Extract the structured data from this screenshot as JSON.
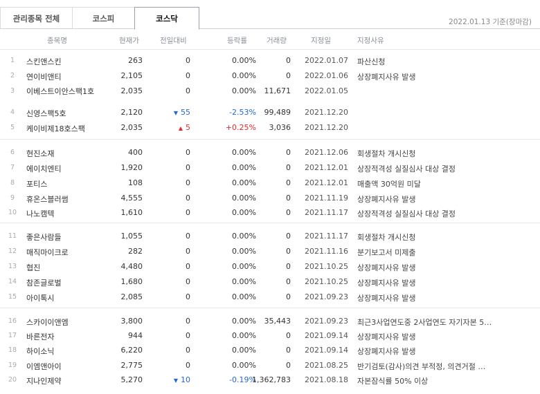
{
  "tabs": [
    "관리종목 전체",
    "코스피",
    "코스닥"
  ],
  "active_tab": 2,
  "date_label": "2022.01.13 기준(장마감)",
  "columns": [
    "종목명",
    "현재가",
    "전일대비",
    "등락률",
    "거래량",
    "지정일",
    "지정사유"
  ],
  "colors": {
    "up": "#e22d2d",
    "down": "#2466d8"
  },
  "rows": [
    {
      "no": "1",
      "name": "스킨앤스킨",
      "price": "263",
      "chg": "0",
      "dir": "",
      "rate": "0.00%",
      "vol": "0",
      "date": "2022.01.07",
      "reason": "파산신청"
    },
    {
      "no": "2",
      "name": "연이비앤티",
      "price": "2,105",
      "chg": "0",
      "dir": "",
      "rate": "0.00%",
      "vol": "0",
      "date": "2022.01.06",
      "reason": "상장폐지사유 발생"
    },
    {
      "no": "3",
      "name": "이베스트이안스팩1호",
      "price": "2,035",
      "chg": "0",
      "dir": "",
      "rate": "0.00%",
      "vol": "11,671",
      "date": "2022.01.05",
      "reason": ""
    },
    {
      "no": "4",
      "name": "신영스팩5호",
      "price": "2,120",
      "chg": "55",
      "dir": "down",
      "rate": "-2.53%",
      "vol": "99,489",
      "date": "2021.12.20",
      "reason": ""
    },
    {
      "no": "5",
      "name": "케이비제18호스팩",
      "price": "2,035",
      "chg": "5",
      "dir": "up",
      "rate": "+0.25%",
      "vol": "3,036",
      "date": "2021.12.20",
      "reason": ""
    },
    {
      "no": "6",
      "name": "현진소재",
      "price": "400",
      "chg": "0",
      "dir": "",
      "rate": "0.00%",
      "vol": "0",
      "date": "2021.12.06",
      "reason": "회생절차 개시신청"
    },
    {
      "no": "7",
      "name": "에이치엔티",
      "price": "1,920",
      "chg": "0",
      "dir": "",
      "rate": "0.00%",
      "vol": "0",
      "date": "2021.12.01",
      "reason": "상장적격성 실질심사 대상 결정"
    },
    {
      "no": "8",
      "name": "포티스",
      "price": "108",
      "chg": "0",
      "dir": "",
      "rate": "0.00%",
      "vol": "0",
      "date": "2021.12.01",
      "reason": "매출액 30억원 미달"
    },
    {
      "no": "9",
      "name": "휴온스블러썸",
      "price": "4,555",
      "chg": "0",
      "dir": "",
      "rate": "0.00%",
      "vol": "0",
      "date": "2021.11.19",
      "reason": "상장폐지사유 발생"
    },
    {
      "no": "10",
      "name": "나노캠텍",
      "price": "1,610",
      "chg": "0",
      "dir": "",
      "rate": "0.00%",
      "vol": "0",
      "date": "2021.11.17",
      "reason": "상장적격성 실질심사 대상 결정"
    },
    {
      "no": "11",
      "name": "좋은사람들",
      "price": "1,055",
      "chg": "0",
      "dir": "",
      "rate": "0.00%",
      "vol": "0",
      "date": "2021.11.17",
      "reason": "회생절차 개시신청"
    },
    {
      "no": "12",
      "name": "매직마이크로",
      "price": "282",
      "chg": "0",
      "dir": "",
      "rate": "0.00%",
      "vol": "0",
      "date": "2021.11.16",
      "reason": "분기보고서 미제출"
    },
    {
      "no": "13",
      "name": "협진",
      "price": "4,480",
      "chg": "0",
      "dir": "",
      "rate": "0.00%",
      "vol": "0",
      "date": "2021.10.25",
      "reason": "상장폐지사유 발생"
    },
    {
      "no": "14",
      "name": "참존글로벌",
      "price": "1,680",
      "chg": "0",
      "dir": "",
      "rate": "0.00%",
      "vol": "0",
      "date": "2021.10.25",
      "reason": "상장폐지사유 발생"
    },
    {
      "no": "15",
      "name": "아이톡시",
      "price": "2,085",
      "chg": "0",
      "dir": "",
      "rate": "0.00%",
      "vol": "0",
      "date": "2021.09.23",
      "reason": "상장폐지사유 발생"
    },
    {
      "no": "16",
      "name": "스카이이앤엠",
      "price": "3,800",
      "chg": "0",
      "dir": "",
      "rate": "0.00%",
      "vol": "35,443",
      "date": "2021.09.23",
      "reason": "최근3사업연도중 2사업연도 자기자본 5…"
    },
    {
      "no": "17",
      "name": "바른전자",
      "price": "944",
      "chg": "0",
      "dir": "",
      "rate": "0.00%",
      "vol": "0",
      "date": "2021.09.14",
      "reason": "상장폐지사유 발생"
    },
    {
      "no": "18",
      "name": "하이소닉",
      "price": "6,220",
      "chg": "0",
      "dir": "",
      "rate": "0.00%",
      "vol": "0",
      "date": "2021.09.14",
      "reason": "상장폐지사유 발생"
    },
    {
      "no": "19",
      "name": "이엠앤아이",
      "price": "2,775",
      "chg": "0",
      "dir": "",
      "rate": "0.00%",
      "vol": "0",
      "date": "2021.08.25",
      "reason": "반기검토(감사)의견 부적정, 의견거절 …"
    },
    {
      "no": "20",
      "name": "지나인제약",
      "price": "5,270",
      "chg": "10",
      "dir": "down",
      "rate": "-0.19%",
      "vol": "1,362,783",
      "date": "2021.08.18",
      "reason": "자본잠식률 50% 이상"
    }
  ]
}
